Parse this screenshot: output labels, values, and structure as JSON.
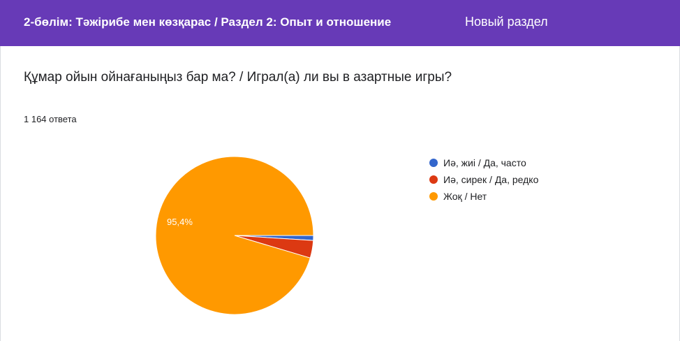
{
  "header": {
    "section_title": "2-бөлім: Тәжірибе мен көзқарас / Раздел 2: Опыт и отношение",
    "section_subtitle": "Новый раздел"
  },
  "question": {
    "text": "Құмар ойын ойнағаныңыз бар ма? / Играл(а) ли вы в азартные игры?",
    "responses": "1 164 ответа"
  },
  "colors": {
    "header_bg": "#673ab7",
    "slice_often": "#3366cc",
    "slice_rarely": "#dc3912",
    "slice_no": "#ff9900"
  },
  "chart_data": {
    "type": "pie",
    "title": "",
    "legend_position": "right",
    "categories": [
      "Иә, жиі / Да, часто",
      "Иә, сирек / Да, редко",
      "Жоқ / Нет"
    ],
    "values": [
      1.0,
      3.6,
      95.4
    ],
    "colors": [
      "#3366cc",
      "#dc3912",
      "#ff9900"
    ],
    "data_labels": [
      "",
      "",
      "95,4%"
    ]
  }
}
